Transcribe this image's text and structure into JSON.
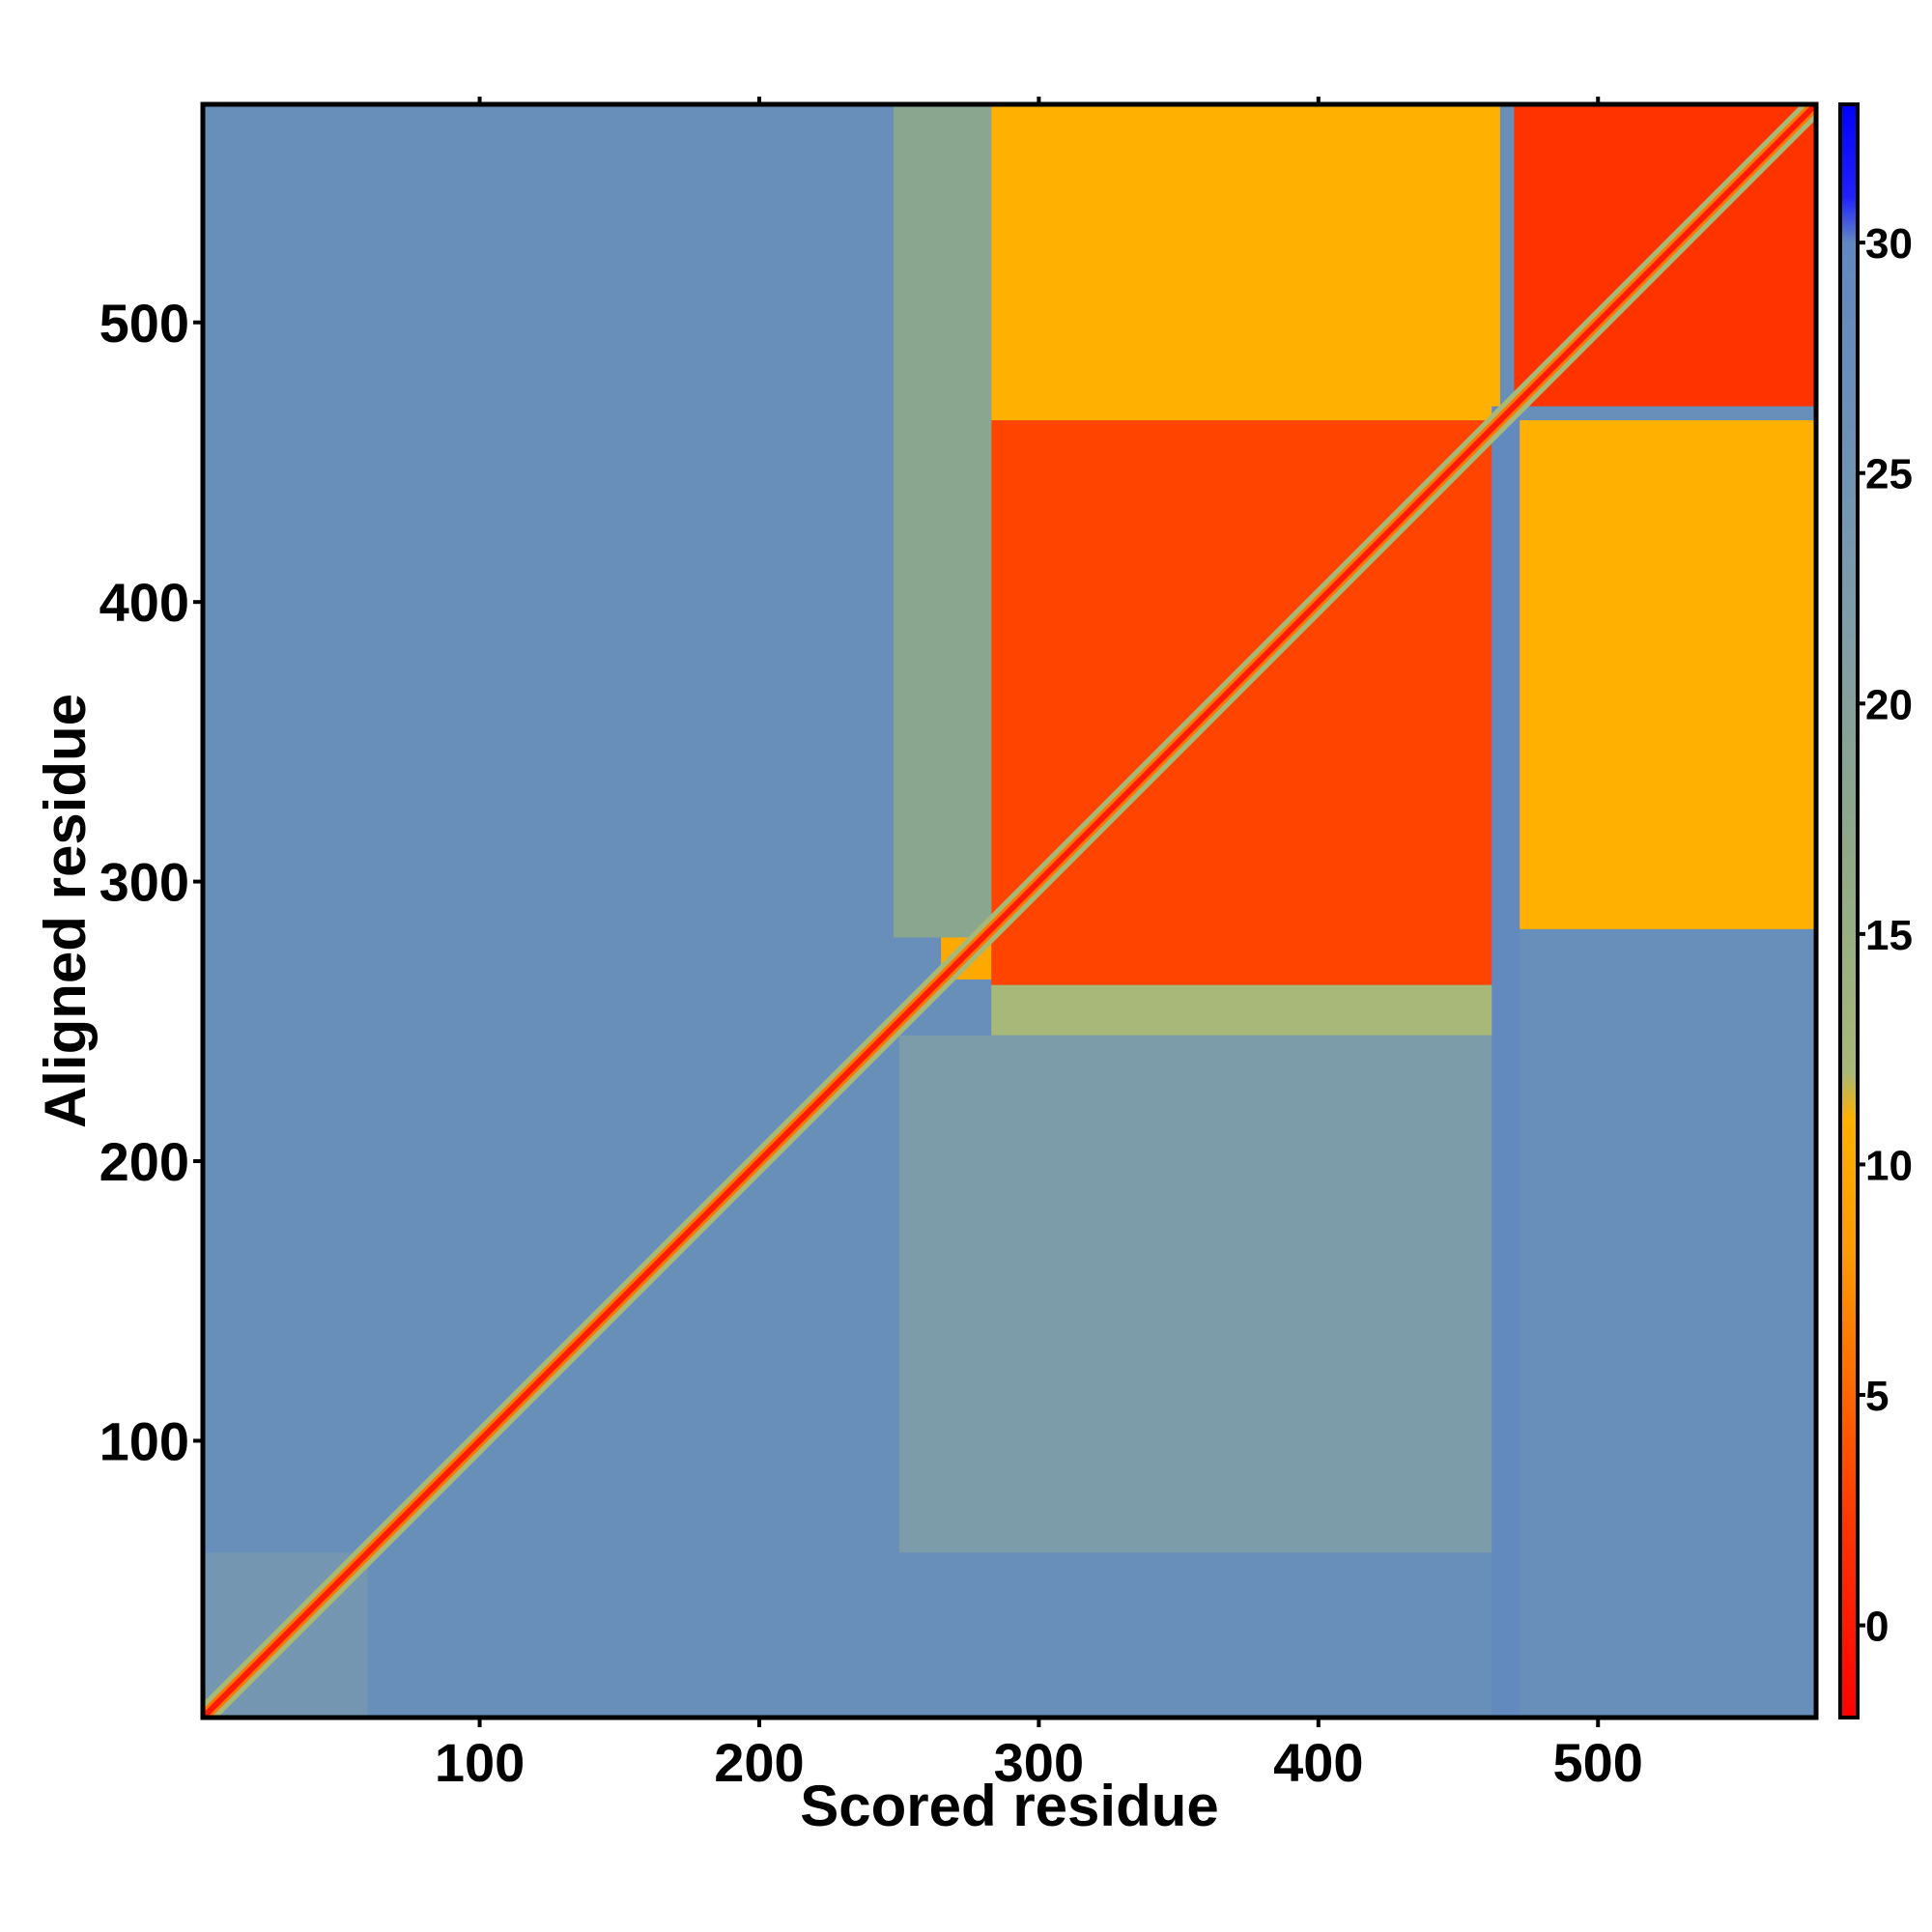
{
  "chart_data": {
    "type": "heatmap",
    "title": "",
    "xlabel": "Scored residue",
    "ylabel": "Aligned residue",
    "xlim": [
      1,
      578
    ],
    "ylim": [
      1,
      578
    ],
    "x_ticks": [
      100,
      200,
      300,
      400,
      500
    ],
    "y_ticks": [
      100,
      200,
      300,
      400,
      500
    ],
    "colorbar": {
      "range": [
        -2,
        33
      ],
      "ticks": [
        0,
        5,
        10,
        15,
        20,
        25,
        30
      ],
      "stops": [
        {
          "value": -2,
          "color": "#ff0000"
        },
        {
          "value": 2,
          "color": "#ff3300"
        },
        {
          "value": 5,
          "color": "#ff6600"
        },
        {
          "value": 8,
          "color": "#ff9900"
        },
        {
          "value": 11,
          "color": "#ffb000"
        },
        {
          "value": 12,
          "color": "#a8b878"
        },
        {
          "value": 17,
          "color": "#8ea888"
        },
        {
          "value": 22,
          "color": "#7d9caa"
        },
        {
          "value": 26,
          "color": "#6b90b8"
        },
        {
          "value": 30,
          "color": "#5f88c0"
        },
        {
          "value": 31,
          "color": "#2020ff"
        },
        {
          "value": 33,
          "color": "#0000ff"
        }
      ]
    },
    "background_value": 27,
    "diagonal_value": 0,
    "blocks": [
      {
        "x": [
          283,
          465
        ],
        "y": [
          263,
          465
        ],
        "value": 3
      },
      {
        "x": [
          283,
          465
        ],
        "y": [
          465,
          578
        ],
        "value": 11
      },
      {
        "x": [
          465,
          578
        ],
        "y": [
          283,
          465
        ],
        "value": 11
      },
      {
        "x": [
          470,
          578
        ],
        "y": [
          470,
          578
        ],
        "value": 2
      },
      {
        "x": [
          265,
          283
        ],
        "y": [
          265,
          465
        ],
        "value": 10
      },
      {
        "x": [
          283,
          465
        ],
        "y": [
          245,
          263
        ],
        "value": 12
      },
      {
        "x": [
          248,
          283
        ],
        "y": [
          280,
          578
        ],
        "value": 18
      },
      {
        "x": [
          250,
          465
        ],
        "y": [
          60,
          245
        ],
        "value": 22
      },
      {
        "x": [
          462,
          472
        ],
        "y": [
          1,
          470
        ],
        "value": 29
      },
      {
        "x": [
          1,
          60
        ],
        "y": [
          1,
          60
        ],
        "value": 24
      }
    ]
  }
}
